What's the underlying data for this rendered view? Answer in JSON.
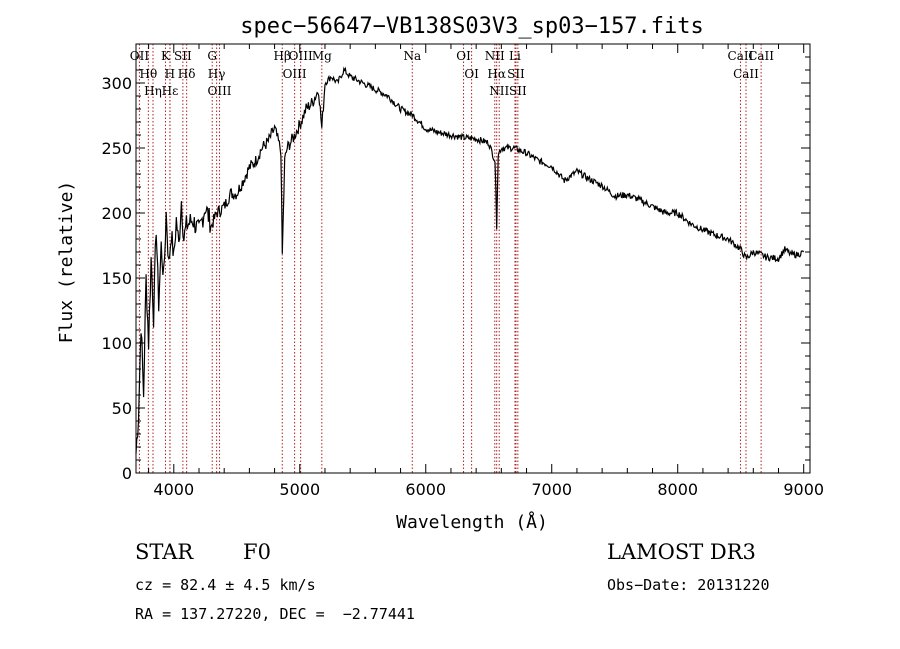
{
  "chart_data": {
    "type": "line",
    "title": "spec−56647−VB138S03V3_sp03−157.fits",
    "xlabel": "Wavelength (Å)",
    "ylabel": "Flux (relative)",
    "xlim": [
      3700,
      9050
    ],
    "ylim": [
      0,
      330
    ],
    "xticks": [
      4000,
      5000,
      6000,
      7000,
      8000,
      9000
    ],
    "yticks": [
      0,
      50,
      100,
      150,
      200,
      250,
      300
    ],
    "grid": false,
    "series": [
      {
        "name": "flux",
        "x": [
          3700,
          3720,
          3740,
          3760,
          3780,
          3800,
          3820,
          3840,
          3860,
          3880,
          3900,
          3920,
          3940,
          3960,
          3980,
          4000,
          4020,
          4040,
          4060,
          4080,
          4100,
          4150,
          4200,
          4250,
          4300,
          4340,
          4400,
          4450,
          4500,
          4550,
          4600,
          4650,
          4700,
          4750,
          4800,
          4850,
          4861,
          4880,
          4900,
          4950,
          5000,
          5050,
          5100,
          5150,
          5175,
          5200,
          5250,
          5300,
          5350,
          5400,
          5500,
          5600,
          5700,
          5800,
          5900,
          6000,
          6100,
          6200,
          6300,
          6400,
          6500,
          6550,
          6563,
          6575,
          6600,
          6700,
          6800,
          6900,
          7000,
          7100,
          7200,
          7300,
          7400,
          7500,
          7600,
          7700,
          7800,
          7900,
          8000,
          8100,
          8200,
          8300,
          8400,
          8450,
          8500,
          8542,
          8600,
          8662,
          8700,
          8800,
          8850,
          8900,
          8950,
          9000
        ],
        "values": [
          15,
          45,
          115,
          60,
          150,
          100,
          165,
          120,
          190,
          130,
          175,
          150,
          200,
          160,
          185,
          165,
          195,
          175,
          210,
          180,
          190,
          195,
          185,
          205,
          190,
          200,
          205,
          215,
          215,
          225,
          235,
          240,
          250,
          255,
          265,
          248,
          168,
          240,
          250,
          258,
          268,
          280,
          285,
          295,
          265,
          300,
          305,
          300,
          310,
          305,
          300,
          295,
          290,
          280,
          275,
          265,
          262,
          260,
          258,
          257,
          254,
          240,
          190,
          245,
          250,
          250,
          246,
          240,
          236,
          225,
          232,
          226,
          221,
          213,
          214,
          210,
          205,
          200,
          200,
          192,
          187,
          183,
          180,
          176,
          172,
          165,
          170,
          168,
          166,
          165,
          172,
          168,
          168,
          170
        ]
      }
    ],
    "lines": [
      {
        "name": "Hθ",
        "x": 3798
      },
      {
        "name": "OII",
        "x": 3727
      },
      {
        "name": "Hη",
        "x": 3835
      },
      {
        "name": "K",
        "x": 3934
      },
      {
        "name": "Hε",
        "x": 3970
      },
      {
        "name": "H",
        "x": 3969
      },
      {
        "name": "Hδ",
        "x": 4102
      },
      {
        "name": "SII",
        "x": 4072
      },
      {
        "name": "OIII",
        "x": 4363
      },
      {
        "name": "Hγ",
        "x": 4340
      },
      {
        "name": "G",
        "x": 4305
      },
      {
        "name": "Hβ",
        "x": 4861
      },
      {
        "name": "OIII",
        "x": 4959
      },
      {
        "name": "OIII",
        "x": 5007
      },
      {
        "name": "Mg",
        "x": 5175
      },
      {
        "name": "Na",
        "x": 5893
      },
      {
        "name": "OI",
        "x": 6300
      },
      {
        "name": "OI",
        "x": 6364
      },
      {
        "name": "Hα",
        "x": 6563
      },
      {
        "name": "NII",
        "x": 6548
      },
      {
        "name": "NII",
        "x": 6583
      },
      {
        "name": "SII",
        "x": 6716
      },
      {
        "name": "Li",
        "x": 6708
      },
      {
        "name": "SII",
        "x": 6731
      },
      {
        "name": "CaII",
        "x": 8498
      },
      {
        "name": "CaII",
        "x": 8542
      },
      {
        "name": "CaII",
        "x": 8662
      }
    ]
  },
  "info": {
    "class": "STAR",
    "subclass": "F0",
    "survey": "LAMOST DR3",
    "cz": "cz = 82.4 ± 4.5 km/s",
    "obs_date": "Obs−Date: 20131220",
    "coords": "RA = 137.27220, DEC =  −2.77441"
  },
  "colors": {
    "spectrum": "#000000",
    "line_markers": "#b22222",
    "background": "#ffffff"
  }
}
